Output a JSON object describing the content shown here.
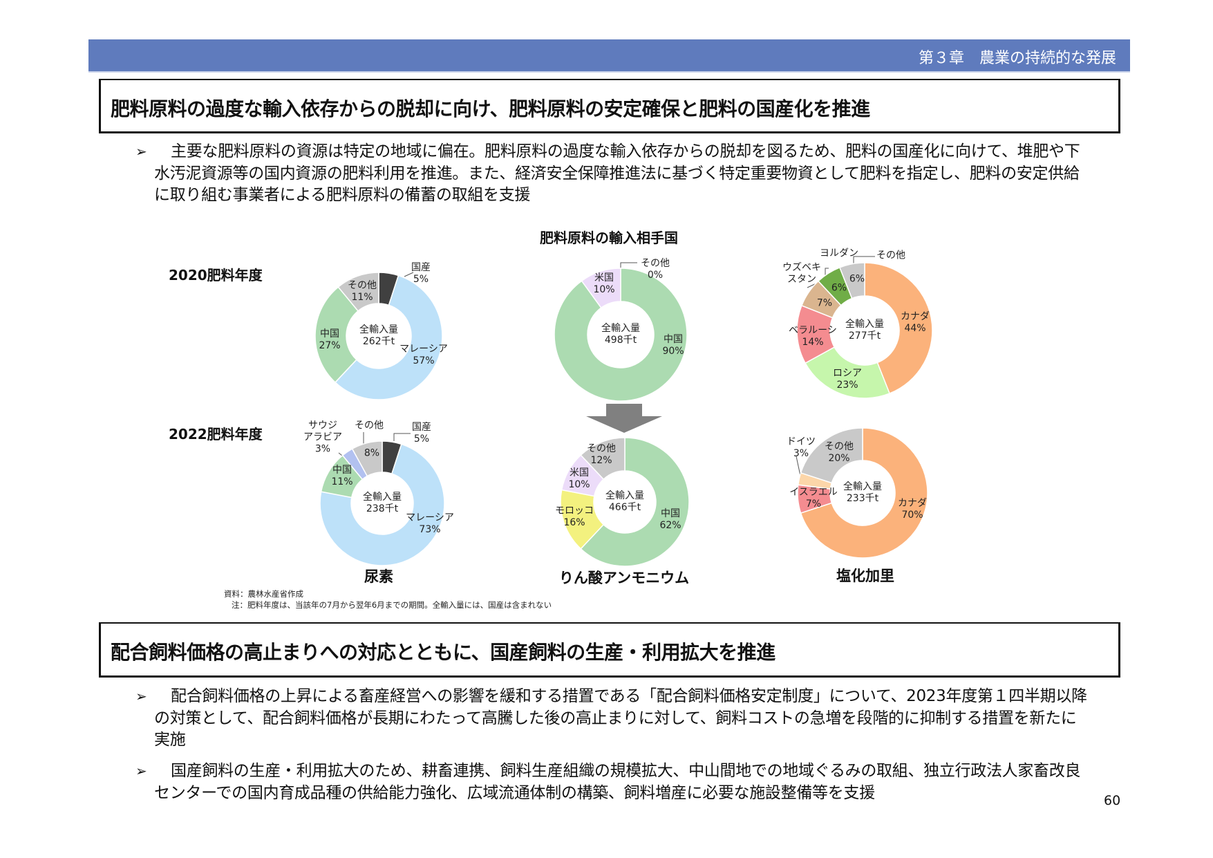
{
  "header": {
    "title": "第３章　農業の持続的な発展",
    "color": "#5f7bbd"
  },
  "section1": {
    "title": "肥料原料の過度な輸入依存からの脱却に向け、肥料原料の安定確保と肥料の国産化を推進",
    "bullets": [
      "主要な肥料原料の資源は特定の地域に偏在。肥料原料の過度な輸入依存からの脱却を図るため、肥料の国産化に向けて、堆肥や下水汚泥資源等の国内資源の肥料利用を推進。また、経済安全保障推進法に基づく特定重要物資として肥料を指定し、肥料の安定供給に取り組む事業者による肥料原料の備蓄の取組を支援"
    ]
  },
  "bullet_marker": "➢",
  "chart_data": {
    "type": "pie",
    "title": "肥料原料の輸入相手国",
    "row_labels": [
      "2020肥料年度",
      "2022肥料年度"
    ],
    "center_label": "全輸入量",
    "charts": [
      {
        "id": "urea",
        "title": "尿素",
        "donuts": [
          {
            "year": "2020肥料年度",
            "total": "262千t",
            "slices": [
              {
                "name": "国産",
                "pct": 5,
                "color": "#404040"
              },
              {
                "name": "マレーシア",
                "pct": 57,
                "color": "#bde1f9"
              },
              {
                "name": "中国",
                "pct": 27,
                "color": "#acdbb1"
              },
              {
                "name": "その他",
                "pct": 11,
                "color": "#c9c9c9"
              }
            ]
          },
          {
            "year": "2022肥料年度",
            "total": "238千t",
            "slices": [
              {
                "name": "国産",
                "pct": 5,
                "color": "#404040"
              },
              {
                "name": "マレーシア",
                "pct": 73,
                "color": "#bde1f9"
              },
              {
                "name": "中国",
                "pct": 11,
                "color": "#acdbb1"
              },
              {
                "name": "サウジ\nアラビア",
                "pct": 3,
                "color": "#b2c1f0"
              },
              {
                "name": "その他",
                "pct": 8,
                "color": "#c9c9c9"
              }
            ]
          }
        ]
      },
      {
        "id": "phosphate",
        "title": "りん酸アンモニウム",
        "donuts": [
          {
            "year": "2020肥料年度",
            "total": "498千t",
            "slices": [
              {
                "name": "中国",
                "pct": 90,
                "color": "#acdbb1"
              },
              {
                "name": "米国",
                "pct": 10,
                "color": "#ecdcf9"
              },
              {
                "name": "その他",
                "pct": 0,
                "color": "#c9c9c9"
              }
            ]
          },
          {
            "year": "2022肥料年度",
            "total": "466千t",
            "slices": [
              {
                "name": "中国",
                "pct": 62,
                "color": "#acdbb1"
              },
              {
                "name": "モロッコ",
                "pct": 16,
                "color": "#f3f17f"
              },
              {
                "name": "米国",
                "pct": 10,
                "color": "#ecdcf9"
              },
              {
                "name": "その他",
                "pct": 12,
                "color": "#c9c9c9"
              }
            ]
          }
        ]
      },
      {
        "id": "potash",
        "title": "塩化加里",
        "donuts": [
          {
            "year": "2020肥料年度",
            "total": "277千t",
            "slices": [
              {
                "name": "カナダ",
                "pct": 44,
                "color": "#fbb27b"
              },
              {
                "name": "ロシア",
                "pct": 23,
                "color": "#c6f6ac"
              },
              {
                "name": "ベラルーシ",
                "pct": 14,
                "color": "#f48c90"
              },
              {
                "name": "ウズベキ\nスタン",
                "pct": 7,
                "color": "#dab58f"
              },
              {
                "name": "ヨルダン",
                "pct": 6,
                "color": "#70ad47"
              },
              {
                "name": "その他",
                "pct": 6,
                "color": "#c9c9c9"
              }
            ]
          },
          {
            "year": "2022肥料年度",
            "total": "233千t",
            "slices": [
              {
                "name": "カナダ",
                "pct": 70,
                "color": "#fbb27b"
              },
              {
                "name": "イスラエル",
                "pct": 7,
                "color": "#f48c90"
              },
              {
                "name": "ドイツ",
                "pct": 3,
                "color": "#fcd6a9"
              },
              {
                "name": "その他",
                "pct": 20,
                "color": "#c9c9c9"
              }
            ]
          }
        ]
      }
    ],
    "arrow_color": "#808080"
  },
  "notes": {
    "source": "資料：農林水産省作成",
    "note": "注：肥料年度は、当該年の7月から翌年6月までの期間。全輸入量には、国産は含まれない"
  },
  "section2": {
    "title": "配合飼料価格の高止まりへの対応とともに、国産飼料の生産・利用拡大を推進",
    "bullets": [
      "配合飼料価格の上昇による畜産経営への影響を緩和する措置である「配合飼料価格安定制度」について、2023年度第１四半期以降の対策として、配合飼料価格が長期にわたって高騰した後の高止まりに対して、飼料コストの急増を段階的に抑制する措置を新たに実施",
      "国産飼料の生産・利用拡大のため、耕畜連携、飼料生産組織の規模拡大、中山間地での地域ぐるみの取組、独立行政法人家畜改良センターでの国内育成品種の供給能力強化、広域流通体制の構築、飼料増産に必要な施設整備等を支援"
    ]
  },
  "page_number": "60"
}
